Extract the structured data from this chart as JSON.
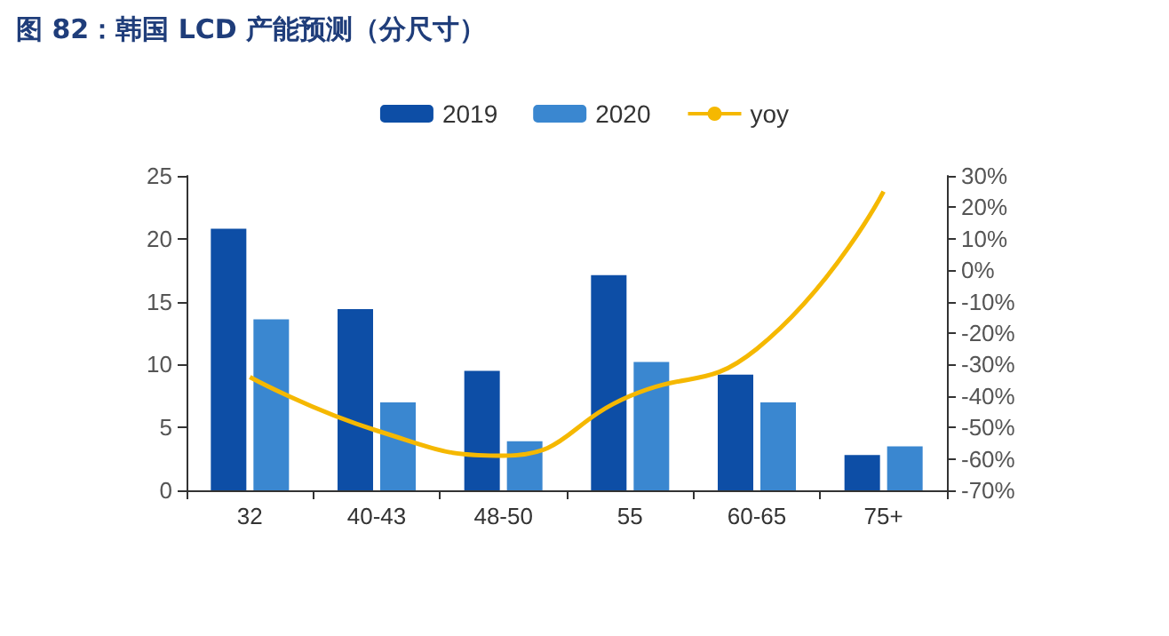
{
  "chart_data": {
    "type": "bar",
    "title": "图 82：韩国 LCD 产能预测（分尺寸）",
    "categories": [
      "32",
      "40-43",
      "48-50",
      "55",
      "60-65",
      "75+"
    ],
    "series": [
      {
        "name": "2019",
        "color": "#0d4ea6",
        "values": [
          20.8,
          14.4,
          9.5,
          17.1,
          9.2,
          2.8
        ]
      },
      {
        "name": "2020",
        "color": "#3a87d0",
        "values": [
          13.6,
          7.0,
          3.9,
          10.2,
          7.0,
          3.5
        ]
      },
      {
        "name": "yoy",
        "type": "line",
        "axis": "y2",
        "color": "#f5b800",
        "values": [
          -34,
          -51,
          -59,
          -40,
          -25,
          25
        ]
      }
    ],
    "ylim": [
      0,
      25
    ],
    "yticks": [
      0,
      5,
      10,
      15,
      20,
      25
    ],
    "y2lim": [
      -70,
      30
    ],
    "y2ticks": [
      {
        "value": -70,
        "label": "-70%"
      },
      {
        "value": -60,
        "label": "-60%"
      },
      {
        "value": -50,
        "label": "-50%"
      },
      {
        "value": -40,
        "label": "-40%"
      },
      {
        "value": -30,
        "label": "-30%"
      },
      {
        "value": -20,
        "label": "-20%"
      },
      {
        "value": -10,
        "label": "-10%"
      },
      {
        "value": 0,
        "label": "0%"
      },
      {
        "value": 10,
        "label": "10%"
      },
      {
        "value": 20,
        "label": "20%"
      },
      {
        "value": 30,
        "label": "30%"
      }
    ],
    "grid": false,
    "legend": "top",
    "marker": "none"
  }
}
